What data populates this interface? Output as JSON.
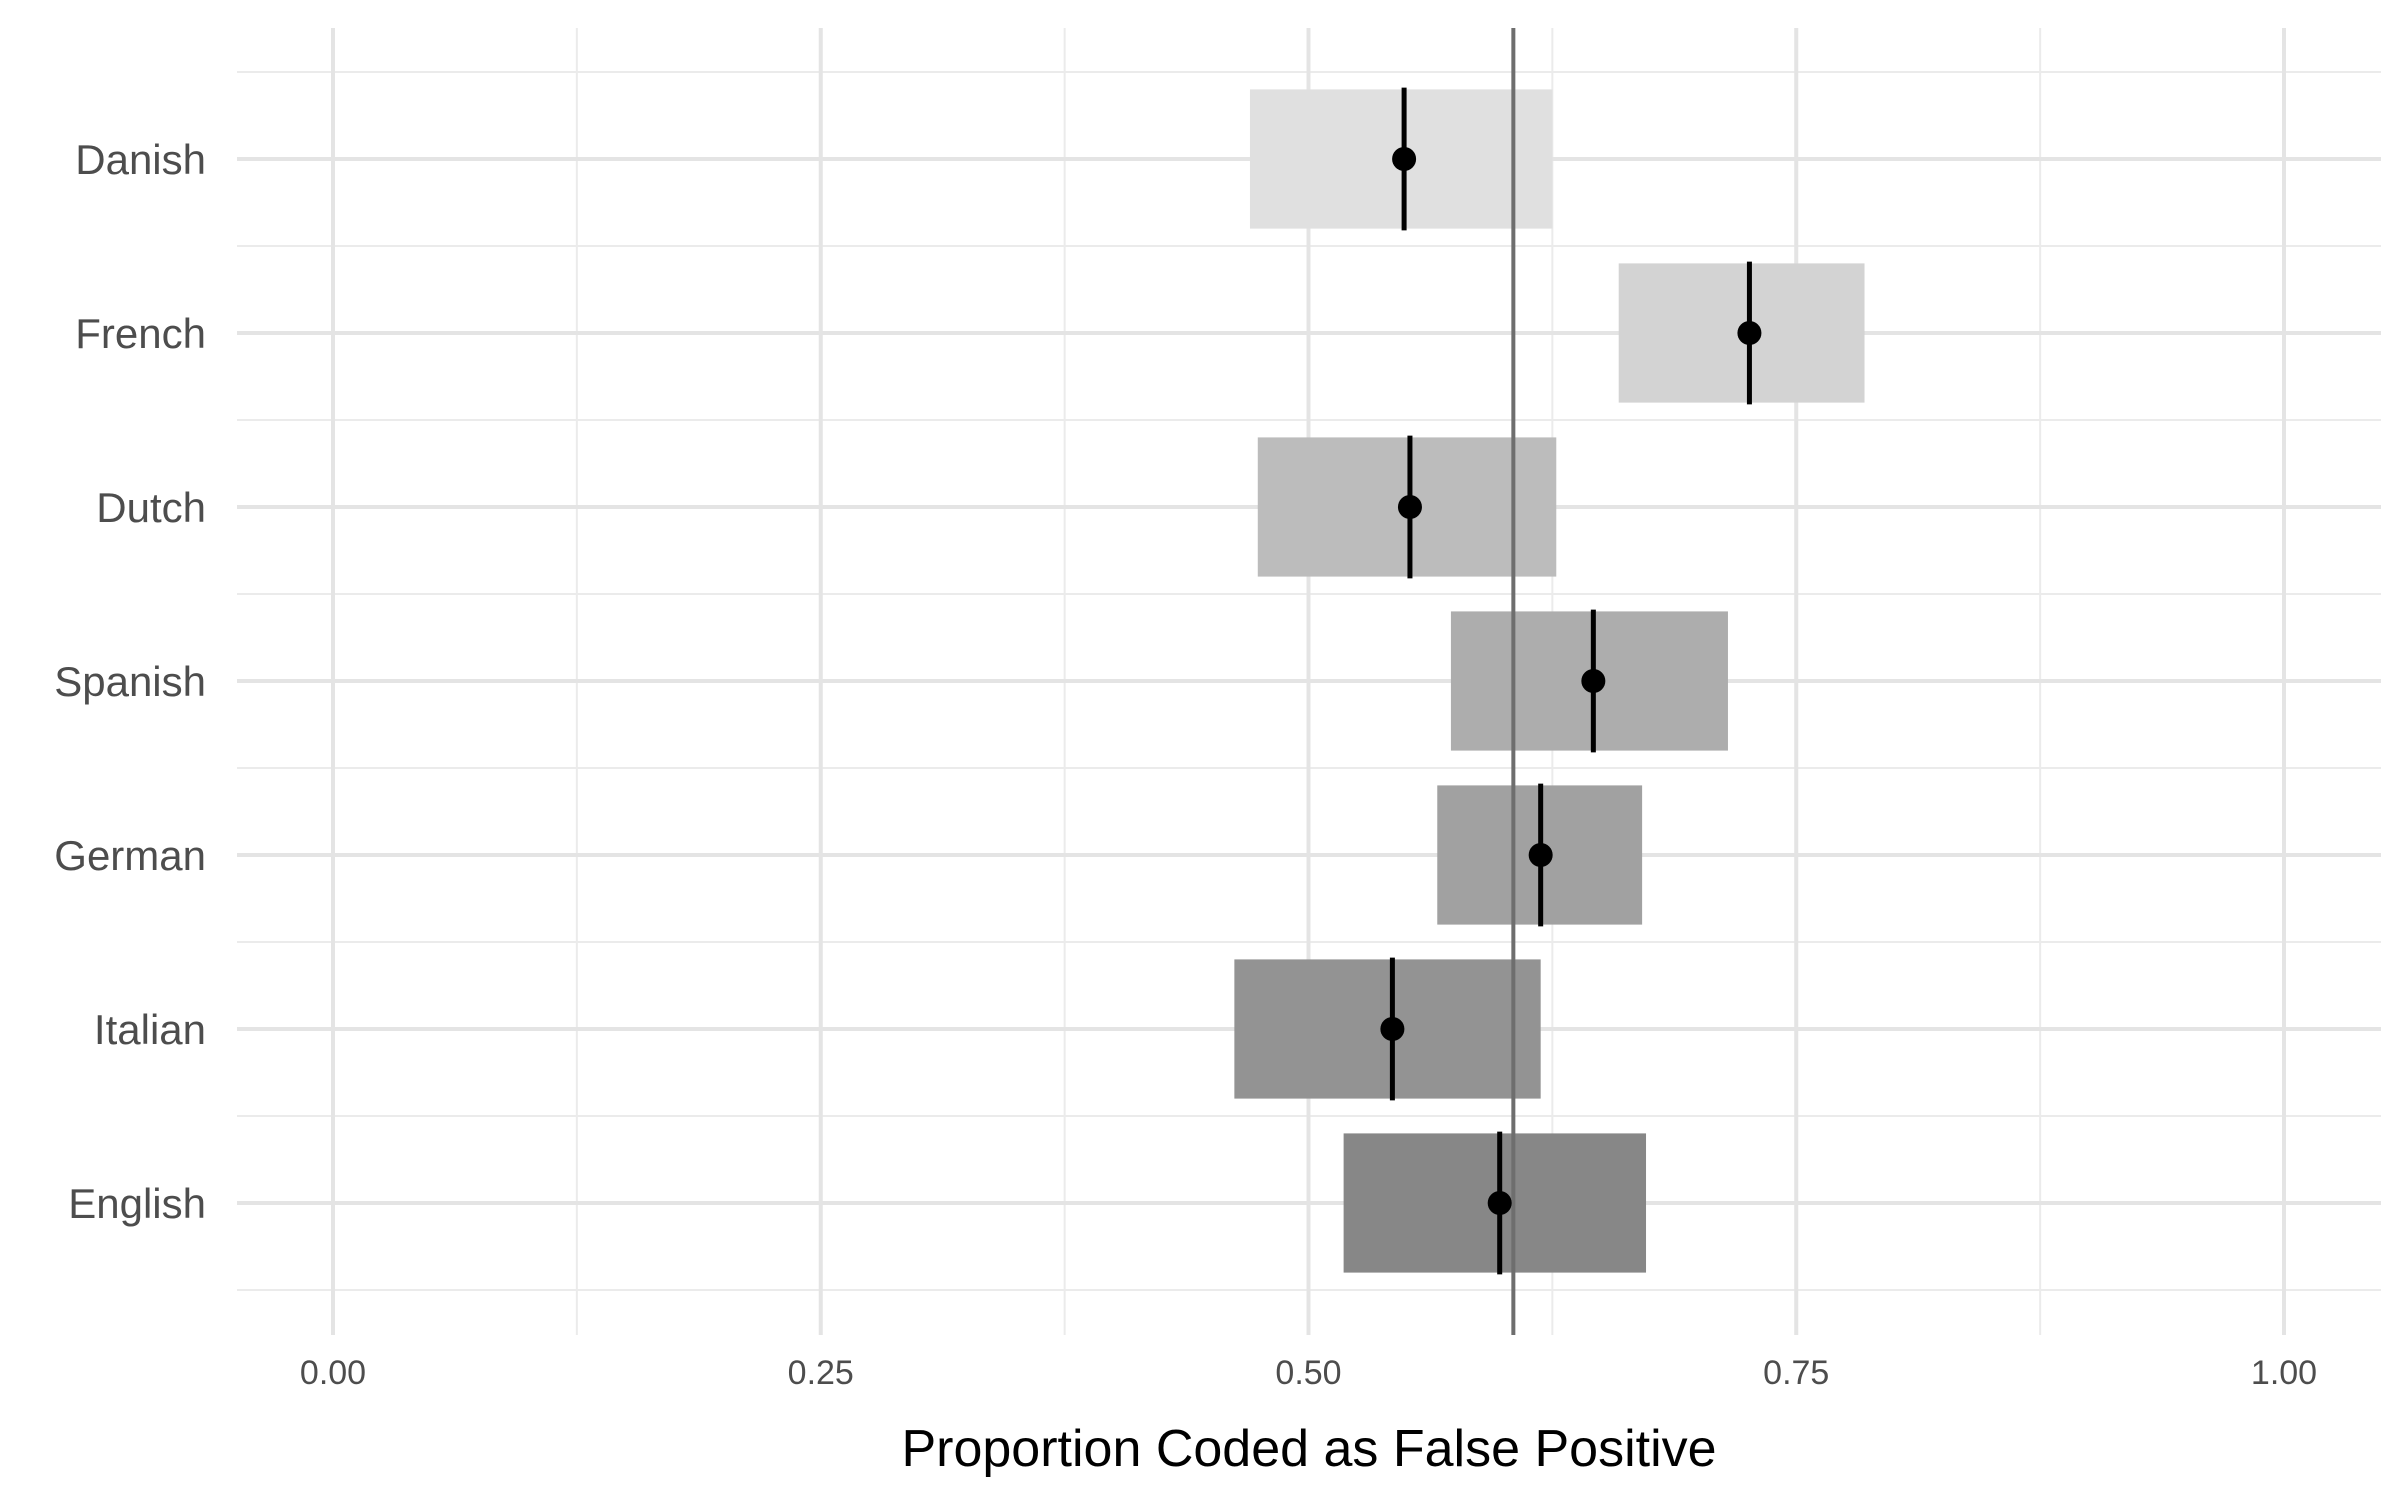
{
  "chart_data": {
    "type": "pointrange",
    "xlabel": "Proportion Coded as False Positive",
    "ylabel": "",
    "title": "",
    "xlim": [
      -0.05,
      1.05
    ],
    "x_ticks": [
      0.0,
      0.25,
      0.5,
      0.75,
      1.0
    ],
    "x_tick_labels": [
      "0.00",
      "0.25",
      "0.50",
      "0.75",
      "1.00"
    ],
    "reference_line": 0.605,
    "grid": true,
    "legend": "none",
    "categories": [
      "Danish",
      "French",
      "Dutch",
      "Spanish",
      "German",
      "Italian",
      "English"
    ],
    "estimates": [
      0.549,
      0.726,
      0.552,
      0.646,
      0.619,
      0.543,
      0.598
    ],
    "ci_low": [
      0.47,
      0.659,
      0.474,
      0.573,
      0.566,
      0.462,
      0.518
    ],
    "ci_high": [
      0.625,
      0.785,
      0.627,
      0.715,
      0.671,
      0.619,
      0.673
    ],
    "bar_colors": [
      "#e0e0e0",
      "#d3d3d3",
      "#bcbcbc",
      "#adadad",
      "#a1a1a1",
      "#939393",
      "#878787"
    ],
    "point_color": "#000000",
    "reference_line_color": "#6e6e6e"
  }
}
